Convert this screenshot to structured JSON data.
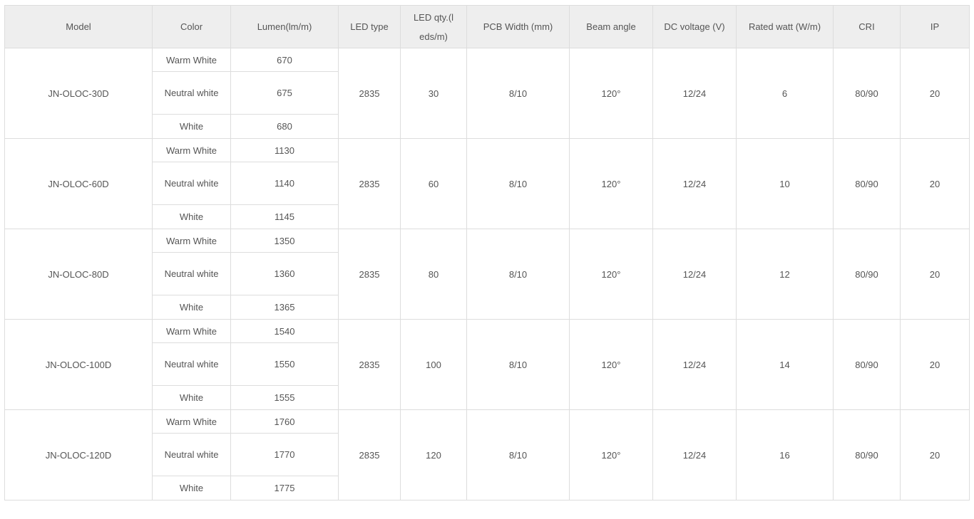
{
  "table": {
    "headers": [
      "Model",
      "Color",
      "Lumen(lm/m)",
      "LED type",
      "LED qty.(leds/m)",
      "PCB Width (mm)",
      "Beam angle",
      "DC voltage (V)",
      "Rated watt (W/m)",
      "CRI",
      "IP"
    ],
    "groups": [
      {
        "model": "JN-OLOC-30D",
        "variants": [
          {
            "color": "Warm White",
            "lumen": "670"
          },
          {
            "color": "Neutral white",
            "lumen": "675"
          },
          {
            "color": "White",
            "lumen": "680"
          }
        ],
        "led_type": "2835",
        "led_qty": "30",
        "pcb_width": "8/10",
        "beam_angle": "120°",
        "dc_voltage": "12/24",
        "rated_watt": "6",
        "cri": "80/90",
        "ip": "20"
      },
      {
        "model": "JN-OLOC-60D",
        "variants": [
          {
            "color": "Warm White",
            "lumen": "1130"
          },
          {
            "color": "Neutral white",
            "lumen": "1140"
          },
          {
            "color": "White",
            "lumen": "1145"
          }
        ],
        "led_type": "2835",
        "led_qty": "60",
        "pcb_width": "8/10",
        "beam_angle": "120°",
        "dc_voltage": "12/24",
        "rated_watt": "10",
        "cri": "80/90",
        "ip": "20"
      },
      {
        "model": "JN-OLOC-80D",
        "variants": [
          {
            "color": "Warm White",
            "lumen": "1350"
          },
          {
            "color": "Neutral white",
            "lumen": "1360"
          },
          {
            "color": "White",
            "lumen": "1365"
          }
        ],
        "led_type": "2835",
        "led_qty": "80",
        "pcb_width": "8/10",
        "beam_angle": "120°",
        "dc_voltage": "12/24",
        "rated_watt": "12",
        "cri": "80/90",
        "ip": "20"
      },
      {
        "model": "JN-OLOC-100D",
        "variants": [
          {
            "color": "Warm White",
            "lumen": "1540"
          },
          {
            "color": "Neutral white",
            "lumen": "1550"
          },
          {
            "color": "White",
            "lumen": "1555"
          }
        ],
        "led_type": "2835",
        "led_qty": "100",
        "pcb_width": "8/10",
        "beam_angle": "120°",
        "dc_voltage": "12/24",
        "rated_watt": "14",
        "cri": "80/90",
        "ip": "20"
      },
      {
        "model": "JN-OLOC-120D",
        "variants": [
          {
            "color": "Warm White",
            "lumen": "1760"
          },
          {
            "color": "Neutral white",
            "lumen": "1770"
          },
          {
            "color": "White",
            "lumen": "1775"
          }
        ],
        "led_type": "2835",
        "led_qty": "120",
        "pcb_width": "8/10",
        "beam_angle": "120°",
        "dc_voltage": "12/24",
        "rated_watt": "16",
        "cri": "80/90",
        "ip": "20"
      }
    ]
  }
}
